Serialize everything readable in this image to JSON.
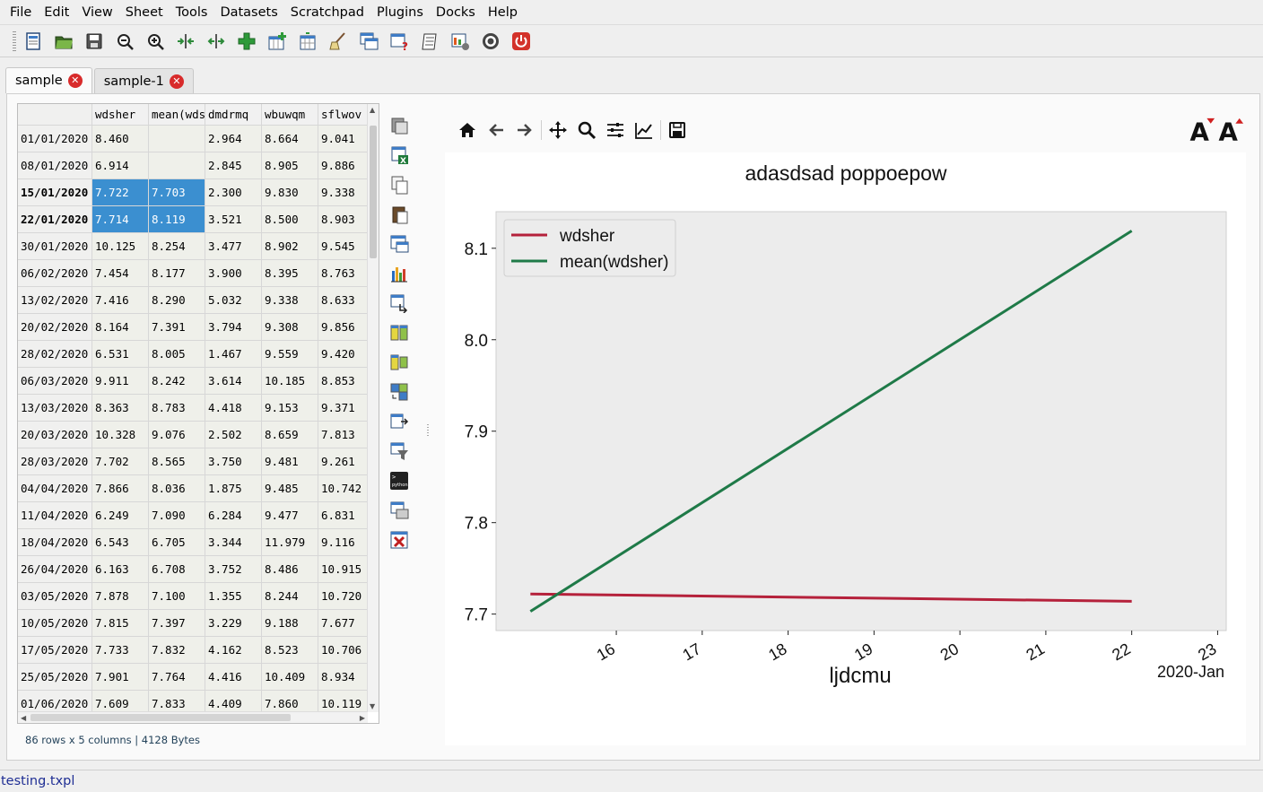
{
  "menu": [
    "File",
    "Edit",
    "View",
    "Sheet",
    "Tools",
    "Datasets",
    "Scratchpad",
    "Plugins",
    "Docks",
    "Help"
  ],
  "toolbar_icons": [
    "new-document-icon",
    "open-folder-icon",
    "save-icon",
    "zoom-out-icon",
    "zoom-in-icon",
    "compress-columns-icon",
    "expand-columns-icon",
    "add-row-icon",
    "add-column-icon",
    "table-plus-icon",
    "clean-data-icon",
    "copy-table-icon",
    "table-help-icon",
    "notes-icon",
    "table-settings-icon",
    "gear-icon",
    "power-icon"
  ],
  "tabs": [
    {
      "label": "sample",
      "active": true
    },
    {
      "label": "sample-1",
      "active": false
    }
  ],
  "table": {
    "columns": [
      "",
      "wdsher",
      "mean(wds",
      "dmdrmq",
      "wbuwqm",
      "sflwov"
    ],
    "rows": [
      [
        "01/01/2020",
        "8.460",
        "",
        "2.964",
        "8.664",
        "9.041"
      ],
      [
        "08/01/2020",
        "6.914",
        "",
        "2.845",
        "8.905",
        "9.886"
      ],
      [
        "15/01/2020",
        "7.722",
        "7.703",
        "2.300",
        "9.830",
        "9.338"
      ],
      [
        "22/01/2020",
        "7.714",
        "8.119",
        "3.521",
        "8.500",
        "8.903"
      ],
      [
        "30/01/2020",
        "10.125",
        "8.254",
        "3.477",
        "8.902",
        "9.545"
      ],
      [
        "06/02/2020",
        "7.454",
        "8.177",
        "3.900",
        "8.395",
        "8.763"
      ],
      [
        "13/02/2020",
        "7.416",
        "8.290",
        "5.032",
        "9.338",
        "8.633"
      ],
      [
        "20/02/2020",
        "8.164",
        "7.391",
        "3.794",
        "9.308",
        "9.856"
      ],
      [
        "28/02/2020",
        "6.531",
        "8.005",
        "1.467",
        "9.559",
        "9.420"
      ],
      [
        "06/03/2020",
        "9.911",
        "8.242",
        "3.614",
        "10.185",
        "8.853"
      ],
      [
        "13/03/2020",
        "8.363",
        "8.783",
        "4.418",
        "9.153",
        "9.371"
      ],
      [
        "20/03/2020",
        "10.328",
        "9.076",
        "2.502",
        "8.659",
        "7.813"
      ],
      [
        "28/03/2020",
        "7.702",
        "8.565",
        "3.750",
        "9.481",
        "9.261"
      ],
      [
        "04/04/2020",
        "7.866",
        "8.036",
        "1.875",
        "9.485",
        "10.742"
      ],
      [
        "11/04/2020",
        "6.249",
        "7.090",
        "6.284",
        "9.477",
        "6.831"
      ],
      [
        "18/04/2020",
        "6.543",
        "6.705",
        "3.344",
        "11.979",
        "9.116"
      ],
      [
        "26/04/2020",
        "6.163",
        "6.708",
        "3.752",
        "8.486",
        "10.915"
      ],
      [
        "03/05/2020",
        "7.878",
        "7.100",
        "1.355",
        "8.244",
        "10.720"
      ],
      [
        "10/05/2020",
        "7.815",
        "7.397",
        "3.229",
        "9.188",
        "7.677"
      ],
      [
        "17/05/2020",
        "7.733",
        "7.832",
        "4.162",
        "8.523",
        "10.706"
      ],
      [
        "25/05/2020",
        "7.901",
        "7.764",
        "4.416",
        "10.409",
        "8.934"
      ],
      [
        "01/06/2020",
        "7.609",
        "7.833",
        "4.409",
        "7.860",
        "10.119"
      ]
    ],
    "selected_rows": [
      2,
      3
    ],
    "selected_cols": [
      1,
      2
    ]
  },
  "status": "86 rows x 5 columns | 4128 Bytes",
  "side_icons": [
    "open-file-icon",
    "excel-icon",
    "copy-icon",
    "paste-icon",
    "table-view-icon",
    "bar-chart-icon",
    "transpose-icon",
    "merge-icon",
    "join-icon",
    "concat-icon",
    "export-icon",
    "filter-icon",
    "python-icon",
    "table-stack-icon",
    "close-table-icon"
  ],
  "plot_toolbar_icons": [
    "home-icon",
    "back-arrow-icon",
    "forward-arrow-icon",
    "pan-icon",
    "zoom-icon",
    "configure-subplots-icon",
    "edit-axis-icon",
    "save-figure-icon"
  ],
  "font_buttons": [
    {
      "label": "A",
      "icon": "increase-font-icon"
    },
    {
      "label": "A",
      "icon": "decrease-font-icon"
    }
  ],
  "chart_data": {
    "type": "line",
    "title": "adasdsad poppoepow",
    "xlabel": "ljdcmu",
    "ylabel": "",
    "x_offset_label": "2020-Jan",
    "x_ticks": [
      "16",
      "17",
      "18",
      "19",
      "20",
      "21",
      "22",
      "23"
    ],
    "y_ticks": [
      "7.7",
      "7.8",
      "7.9",
      "8.0",
      "8.1"
    ],
    "x_dates": [
      "2020-01-15",
      "2020-01-22"
    ],
    "xlim": [
      "2020-01-14.6",
      "2020-01-23.1"
    ],
    "ylim": [
      7.682,
      8.14
    ],
    "legend_position": "upper-left",
    "grid": false,
    "series": [
      {
        "name": "wdsher",
        "color": "#b5213b",
        "x": [
          "2020-01-15",
          "2020-01-22"
        ],
        "values": [
          7.722,
          7.714
        ]
      },
      {
        "name": "mean(wdsher)",
        "color": "#1f7a48",
        "x": [
          "2020-01-15",
          "2020-01-22"
        ],
        "values": [
          7.703,
          8.119
        ]
      }
    ],
    "axes_bg": "#ececec"
  },
  "filename": "testing.txpl"
}
